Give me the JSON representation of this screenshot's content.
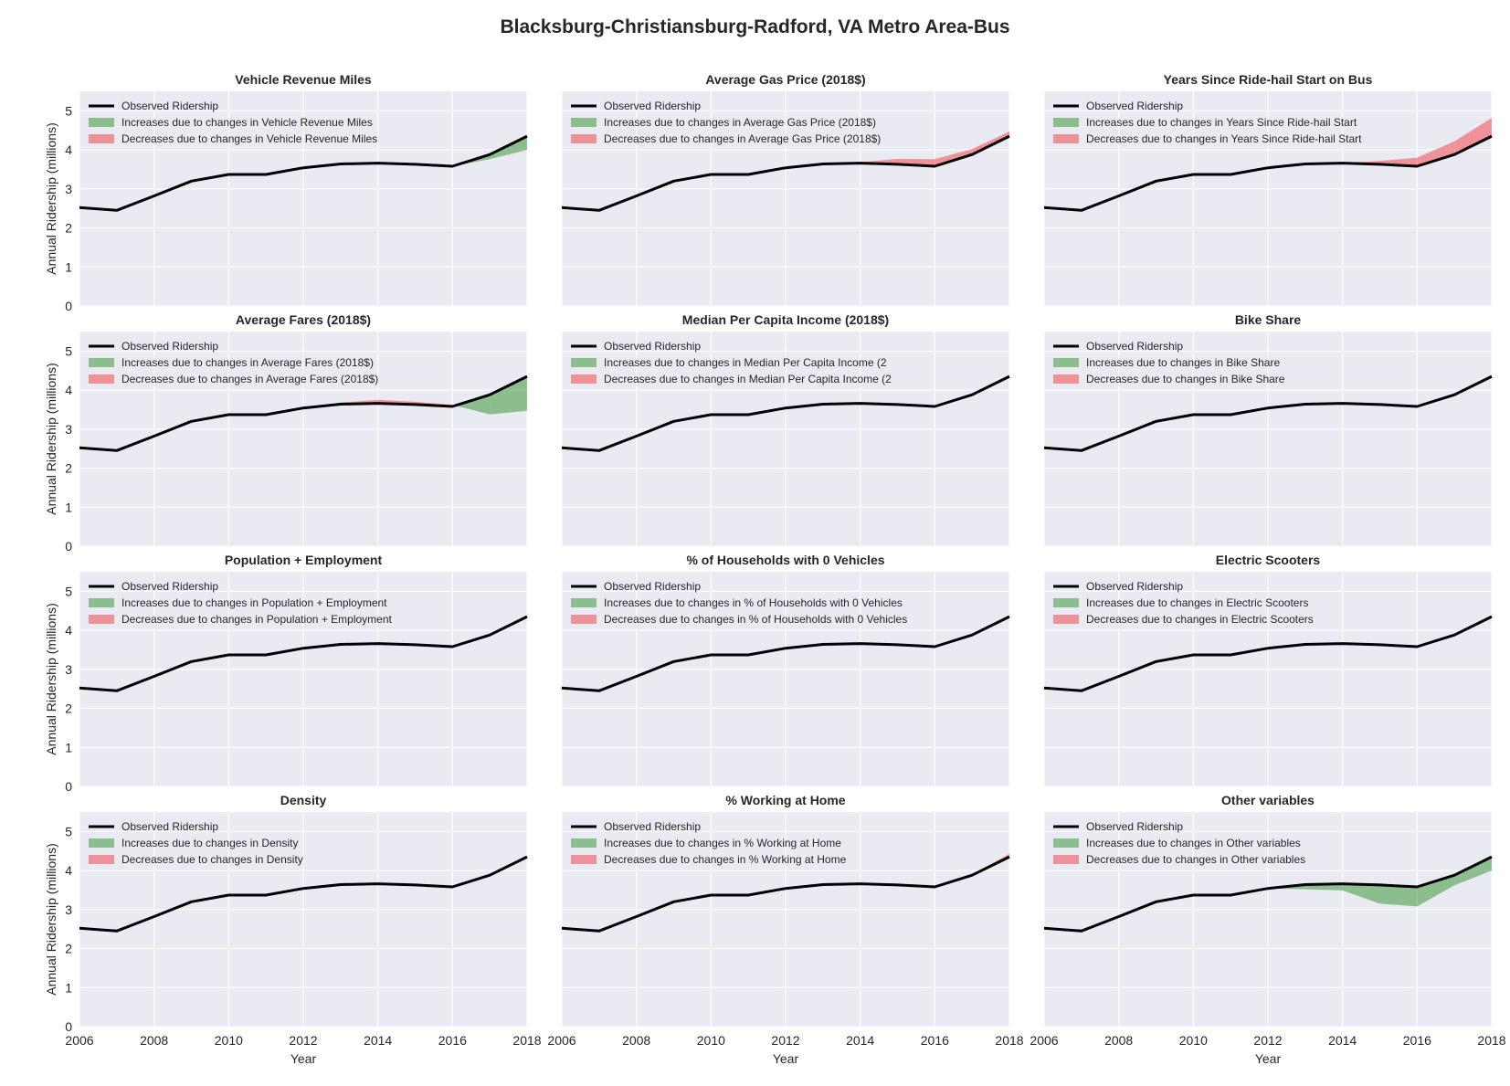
{
  "figure_title": "Blacksburg-Christiansburg-Radford, VA Metro Area-Bus",
  "colors": {
    "axes_bg": "#eaeaf2",
    "grid": "#ffffff",
    "observed_line": "#000000",
    "increase_fill": "#4c9f4c",
    "decrease_fill": "#f0555e",
    "text": "#262626"
  },
  "chart_data": [
    {
      "type": "area",
      "title": "Vehicle Revenue Miles",
      "xlabel": "",
      "ylabel": "Annual Ridership (millions)",
      "x": [
        2006,
        2007,
        2008,
        2009,
        2010,
        2011,
        2012,
        2013,
        2014,
        2015,
        2016,
        2017,
        2018
      ],
      "observed": [
        2.52,
        2.45,
        2.82,
        3.2,
        3.37,
        3.37,
        3.54,
        3.64,
        3.66,
        3.63,
        3.58,
        3.88,
        4.35
      ],
      "counterfactual": [
        2.52,
        2.45,
        2.82,
        3.2,
        3.37,
        3.37,
        3.54,
        3.64,
        3.66,
        3.63,
        3.58,
        3.76,
        4.0
      ],
      "xlim": [
        2006,
        2018
      ],
      "ylim": [
        0,
        5.5
      ],
      "legend": [
        "Observed Ridership",
        "Increases due to changes in Vehicle Revenue Miles",
        "Decreases due to changes in Vehicle Revenue Miles"
      ],
      "legend_loc": "upper left",
      "grid": true
    },
    {
      "type": "area",
      "title": "Average Gas Price (2018$)",
      "xlabel": "",
      "ylabel": "",
      "x": [
        2006,
        2007,
        2008,
        2009,
        2010,
        2011,
        2012,
        2013,
        2014,
        2015,
        2016,
        2017,
        2018
      ],
      "observed": [
        2.52,
        2.45,
        2.82,
        3.2,
        3.37,
        3.37,
        3.54,
        3.64,
        3.66,
        3.63,
        3.58,
        3.88,
        4.35
      ],
      "counterfactual": [
        2.52,
        2.45,
        2.82,
        3.2,
        3.37,
        3.37,
        3.54,
        3.64,
        3.68,
        3.77,
        3.76,
        4.02,
        4.47
      ],
      "xlim": [
        2006,
        2018
      ],
      "ylim": [
        0,
        5.5
      ],
      "legend": [
        "Observed Ridership",
        "Increases due to changes in Average Gas Price (2018$)",
        "Decreases due to changes in Average Gas Price (2018$)"
      ],
      "legend_loc": "upper left",
      "grid": true
    },
    {
      "type": "area",
      "title": "Years Since Ride-hail Start on Bus",
      "xlabel": "",
      "ylabel": "",
      "x": [
        2006,
        2007,
        2008,
        2009,
        2010,
        2011,
        2012,
        2013,
        2014,
        2015,
        2016,
        2017,
        2018
      ],
      "observed": [
        2.52,
        2.45,
        2.82,
        3.2,
        3.37,
        3.37,
        3.54,
        3.64,
        3.66,
        3.63,
        3.58,
        3.88,
        4.35
      ],
      "counterfactual": [
        2.52,
        2.45,
        2.82,
        3.2,
        3.37,
        3.37,
        3.54,
        3.64,
        3.66,
        3.72,
        3.8,
        4.22,
        4.82
      ],
      "xlim": [
        2006,
        2018
      ],
      "ylim": [
        0,
        5.5
      ],
      "legend": [
        "Observed Ridership",
        "Increases due to changes in Years Since Ride-hail Start",
        "Decreases due to changes in Years Since Ride-hail Start"
      ],
      "legend_loc": "upper left",
      "grid": true
    },
    {
      "type": "area",
      "title": "Average Fares (2018$)",
      "xlabel": "",
      "ylabel": "Annual Ridership (millions)",
      "x": [
        2006,
        2007,
        2008,
        2009,
        2010,
        2011,
        2012,
        2013,
        2014,
        2015,
        2016,
        2017,
        2018
      ],
      "observed": [
        2.52,
        2.45,
        2.82,
        3.2,
        3.37,
        3.37,
        3.54,
        3.64,
        3.66,
        3.63,
        3.58,
        3.88,
        4.35
      ],
      "counterfactual": [
        2.52,
        2.45,
        2.82,
        3.2,
        3.37,
        3.37,
        3.54,
        3.68,
        3.75,
        3.7,
        3.62,
        3.38,
        3.47
      ],
      "xlim": [
        2006,
        2018
      ],
      "ylim": [
        0,
        5.5
      ],
      "legend": [
        "Observed Ridership",
        "Increases due to changes in Average Fares (2018$)",
        "Decreases due to changes in Average Fares (2018$)"
      ],
      "legend_loc": "upper left",
      "grid": true
    },
    {
      "type": "area",
      "title": "Median Per Capita Income (2018$)",
      "xlabel": "",
      "ylabel": "",
      "x": [
        2006,
        2007,
        2008,
        2009,
        2010,
        2011,
        2012,
        2013,
        2014,
        2015,
        2016,
        2017,
        2018
      ],
      "observed": [
        2.52,
        2.45,
        2.82,
        3.2,
        3.37,
        3.37,
        3.54,
        3.64,
        3.66,
        3.63,
        3.58,
        3.88,
        4.35
      ],
      "counterfactual": [
        2.52,
        2.45,
        2.82,
        3.2,
        3.37,
        3.37,
        3.54,
        3.64,
        3.66,
        3.63,
        3.58,
        3.88,
        4.35
      ],
      "xlim": [
        2006,
        2018
      ],
      "ylim": [
        0,
        5.5
      ],
      "legend": [
        "Observed Ridership",
        "Increases due to changes in Median Per Capita Income (2",
        "Decreases due to changes in Median Per Capita Income (2"
      ],
      "legend_loc": "upper left",
      "grid": true
    },
    {
      "type": "area",
      "title": "Bike Share",
      "xlabel": "",
      "ylabel": "",
      "x": [
        2006,
        2007,
        2008,
        2009,
        2010,
        2011,
        2012,
        2013,
        2014,
        2015,
        2016,
        2017,
        2018
      ],
      "observed": [
        2.52,
        2.45,
        2.82,
        3.2,
        3.37,
        3.37,
        3.54,
        3.64,
        3.66,
        3.63,
        3.58,
        3.88,
        4.35
      ],
      "counterfactual": [
        2.52,
        2.45,
        2.82,
        3.2,
        3.37,
        3.37,
        3.54,
        3.64,
        3.66,
        3.63,
        3.58,
        3.88,
        4.35
      ],
      "xlim": [
        2006,
        2018
      ],
      "ylim": [
        0,
        5.5
      ],
      "legend": [
        "Observed Ridership",
        "Increases due to changes in Bike Share",
        "Decreases due to changes in Bike Share"
      ],
      "legend_loc": "upper left",
      "grid": true
    },
    {
      "type": "area",
      "title": "Population + Employment",
      "xlabel": "",
      "ylabel": "Annual Ridership (millions)",
      "x": [
        2006,
        2007,
        2008,
        2009,
        2010,
        2011,
        2012,
        2013,
        2014,
        2015,
        2016,
        2017,
        2018
      ],
      "observed": [
        2.52,
        2.45,
        2.82,
        3.2,
        3.37,
        3.37,
        3.54,
        3.64,
        3.66,
        3.63,
        3.58,
        3.88,
        4.35
      ],
      "counterfactual": [
        2.52,
        2.45,
        2.82,
        3.2,
        3.37,
        3.37,
        3.54,
        3.64,
        3.66,
        3.63,
        3.58,
        3.88,
        4.35
      ],
      "xlim": [
        2006,
        2018
      ],
      "ylim": [
        0,
        5.5
      ],
      "legend": [
        "Observed Ridership",
        "Increases due to changes in Population + Employment",
        "Decreases due to changes in Population + Employment"
      ],
      "legend_loc": "upper left",
      "grid": true
    },
    {
      "type": "area",
      "title": "% of Households with 0 Vehicles",
      "xlabel": "",
      "ylabel": "",
      "x": [
        2006,
        2007,
        2008,
        2009,
        2010,
        2011,
        2012,
        2013,
        2014,
        2015,
        2016,
        2017,
        2018
      ],
      "observed": [
        2.52,
        2.45,
        2.82,
        3.2,
        3.37,
        3.37,
        3.54,
        3.64,
        3.66,
        3.63,
        3.58,
        3.88,
        4.35
      ],
      "counterfactual": [
        2.52,
        2.45,
        2.82,
        3.2,
        3.37,
        3.37,
        3.54,
        3.64,
        3.66,
        3.63,
        3.58,
        3.88,
        4.35
      ],
      "xlim": [
        2006,
        2018
      ],
      "ylim": [
        0,
        5.5
      ],
      "legend": [
        "Observed Ridership",
        "Increases due to changes in % of Households with 0 Vehicles",
        "Decreases due to changes in % of Households with 0 Vehicles"
      ],
      "legend_loc": "upper left",
      "grid": true
    },
    {
      "type": "area",
      "title": "Electric Scooters",
      "xlabel": "",
      "ylabel": "",
      "x": [
        2006,
        2007,
        2008,
        2009,
        2010,
        2011,
        2012,
        2013,
        2014,
        2015,
        2016,
        2017,
        2018
      ],
      "observed": [
        2.52,
        2.45,
        2.82,
        3.2,
        3.37,
        3.37,
        3.54,
        3.64,
        3.66,
        3.63,
        3.58,
        3.88,
        4.35
      ],
      "counterfactual": [
        2.52,
        2.45,
        2.82,
        3.2,
        3.37,
        3.37,
        3.54,
        3.64,
        3.66,
        3.63,
        3.58,
        3.88,
        4.35
      ],
      "xlim": [
        2006,
        2018
      ],
      "ylim": [
        0,
        5.5
      ],
      "legend": [
        "Observed Ridership",
        "Increases due to changes in Electric Scooters",
        "Decreases due to changes in Electric Scooters"
      ],
      "legend_loc": "upper left",
      "grid": true
    },
    {
      "type": "area",
      "title": "Density",
      "xlabel": "Year",
      "ylabel": "Annual Ridership (millions)",
      "x": [
        2006,
        2007,
        2008,
        2009,
        2010,
        2011,
        2012,
        2013,
        2014,
        2015,
        2016,
        2017,
        2018
      ],
      "observed": [
        2.52,
        2.45,
        2.82,
        3.2,
        3.37,
        3.37,
        3.54,
        3.64,
        3.66,
        3.63,
        3.58,
        3.88,
        4.35
      ],
      "counterfactual": [
        2.52,
        2.45,
        2.82,
        3.2,
        3.37,
        3.37,
        3.54,
        3.64,
        3.66,
        3.63,
        3.58,
        3.88,
        4.35
      ],
      "xlim": [
        2006,
        2018
      ],
      "ylim": [
        0,
        5.5
      ],
      "legend": [
        "Observed Ridership",
        "Increases due to changes in Density",
        "Decreases due to changes in Density"
      ],
      "legend_loc": "upper left",
      "grid": true
    },
    {
      "type": "area",
      "title": "% Working at Home",
      "xlabel": "Year",
      "ylabel": "",
      "x": [
        2006,
        2007,
        2008,
        2009,
        2010,
        2011,
        2012,
        2013,
        2014,
        2015,
        2016,
        2017,
        2018
      ],
      "observed": [
        2.52,
        2.45,
        2.82,
        3.2,
        3.37,
        3.37,
        3.54,
        3.64,
        3.66,
        3.63,
        3.58,
        3.88,
        4.35
      ],
      "counterfactual": [
        2.52,
        2.45,
        2.82,
        3.2,
        3.37,
        3.37,
        3.54,
        3.64,
        3.66,
        3.63,
        3.58,
        3.9,
        4.43
      ],
      "xlim": [
        2006,
        2018
      ],
      "ylim": [
        0,
        5.5
      ],
      "legend": [
        "Observed Ridership",
        "Increases due to changes in % Working at Home",
        "Decreases due to changes in % Working at Home"
      ],
      "legend_loc": "upper left",
      "grid": true
    },
    {
      "type": "area",
      "title": "Other variables",
      "xlabel": "Year",
      "ylabel": "",
      "x": [
        2006,
        2007,
        2008,
        2009,
        2010,
        2011,
        2012,
        2013,
        2014,
        2015,
        2016,
        2017,
        2018
      ],
      "observed": [
        2.52,
        2.45,
        2.82,
        3.2,
        3.37,
        3.37,
        3.54,
        3.64,
        3.66,
        3.63,
        3.58,
        3.88,
        4.35
      ],
      "counterfactual": [
        2.52,
        2.45,
        2.82,
        3.2,
        3.37,
        3.37,
        3.54,
        3.52,
        3.49,
        3.15,
        3.08,
        3.62,
        4.0
      ],
      "xlim": [
        2006,
        2018
      ],
      "ylim": [
        0,
        5.5
      ],
      "legend": [
        "Observed Ridership",
        "Increases due to changes in Other variables",
        "Decreases due to changes in Other variables"
      ],
      "legend_loc": "upper left",
      "grid": true
    }
  ],
  "axes": {
    "x_ticks": [
      2006,
      2008,
      2010,
      2012,
      2014,
      2016,
      2018
    ],
    "y_ticks": [
      0,
      1,
      2,
      3,
      4,
      5
    ]
  }
}
